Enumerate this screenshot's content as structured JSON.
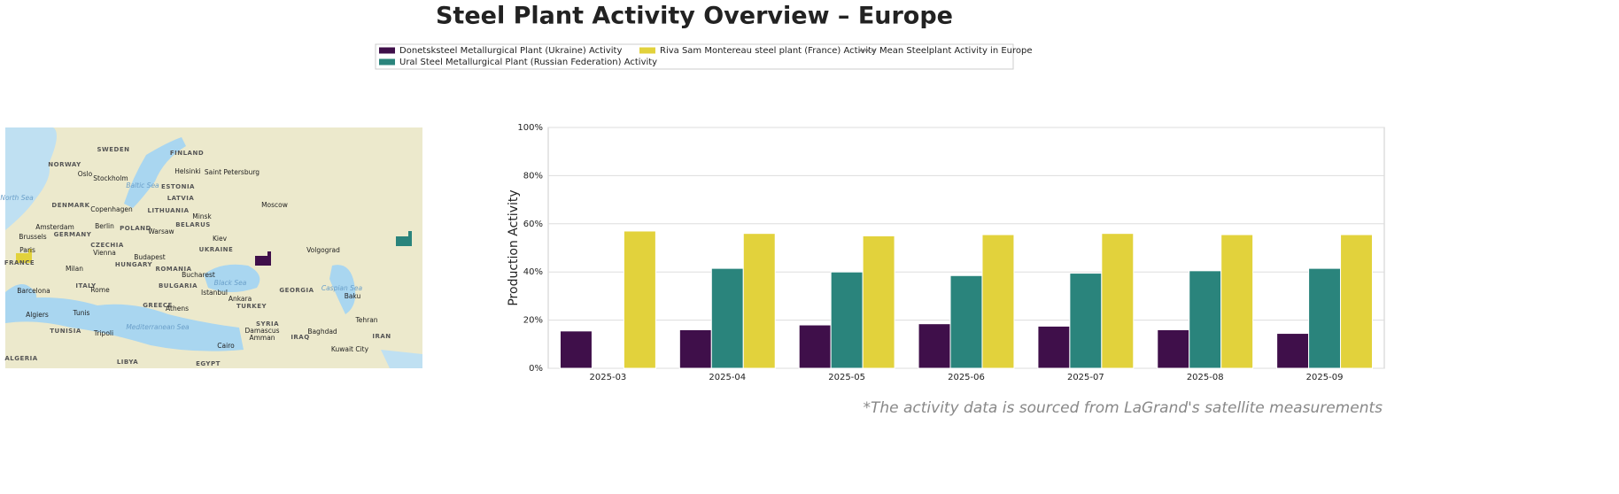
{
  "chart_data": {
    "type": "bar",
    "title": "Steel Plant Activity Overview – Europe",
    "ylabel": "Production Activity",
    "annotation": "*The activity data is sourced from LaGrand's satellite measurements",
    "categories": [
      "2025-03",
      "2025-04",
      "2025-05",
      "2025-06",
      "2025-07",
      "2025-08",
      "2025-09"
    ],
    "series": [
      {
        "name": "Donetsksteel Metallurgical Plant (Ukraine) Activity",
        "color": "#3f0f4a",
        "values": [
          15.5,
          16,
          18,
          18.5,
          17.5,
          16,
          14.5
        ]
      },
      {
        "name": "Ural Steel Metallurgical Plant (Russian Federation) Activity",
        "color": "#2a847c",
        "values": [
          null,
          41.5,
          40,
          38.5,
          39.5,
          40.5,
          41.5
        ]
      },
      {
        "name": "Riva Sam Montereau steel plant (France) Activity",
        "color": "#e2d23c",
        "values": [
          57,
          56,
          55,
          55.5,
          56,
          55.5,
          55.5
        ]
      },
      {
        "name": "Mean Steelplant Activity in Europe",
        "color": "#888888",
        "style": "dashed",
        "values": [
          null,
          null,
          null,
          null,
          null,
          null,
          null
        ]
      }
    ],
    "ylim": [
      0,
      100
    ],
    "yticks": [
      {
        "value": 0,
        "label": "0%"
      },
      {
        "value": 20,
        "label": "20%"
      },
      {
        "value": 40,
        "label": "40%"
      },
      {
        "value": 60,
        "label": "60%"
      },
      {
        "value": 80,
        "label": "80%"
      },
      {
        "value": 100,
        "label": "100%"
      }
    ],
    "grid": true
  },
  "map": {
    "labels": [
      "SWEDEN",
      "FINLAND",
      "NORWAY",
      "Oslo",
      "Stockholm",
      "Helsinki",
      "Saint Petersburg",
      "ESTONIA",
      "North Sea",
      "Baltic Sea",
      "DENMARK",
      "LATVIA",
      "Copenhagen",
      "LITHUANIA",
      "Moscow",
      "Minsk",
      "Amsterdam",
      "Berlin",
      "POLAND",
      "Warsaw",
      "BELARUS",
      "Brussels",
      "GERMANY",
      "Kiev",
      "UKRAINE",
      "Volgograd",
      "Paris",
      "CZECHIA",
      "Vienna",
      "Budapest",
      "HUNGARY",
      "FRANCE",
      "Milan",
      "ROMANIA",
      "Bucharest",
      "ITALY",
      "Rome",
      "Black Sea",
      "BULGARIA",
      "Barcelona",
      "Istanbul",
      "GEORGIA",
      "Caspian Sea",
      "Ankara",
      "Baku",
      "GREECE",
      "Athens",
      "TURKEY",
      "Tehran",
      "SYRIA",
      "Algiers",
      "Tunis",
      "Damascus",
      "Baghdad",
      "Mediterranean Sea",
      "IRAN",
      "TUNISIA",
      "Tripoli",
      "Amman",
      "IRAQ",
      "Kuwait City",
      "Cairo",
      "ALGERIA",
      "LIBYA",
      "EGYPT"
    ]
  }
}
